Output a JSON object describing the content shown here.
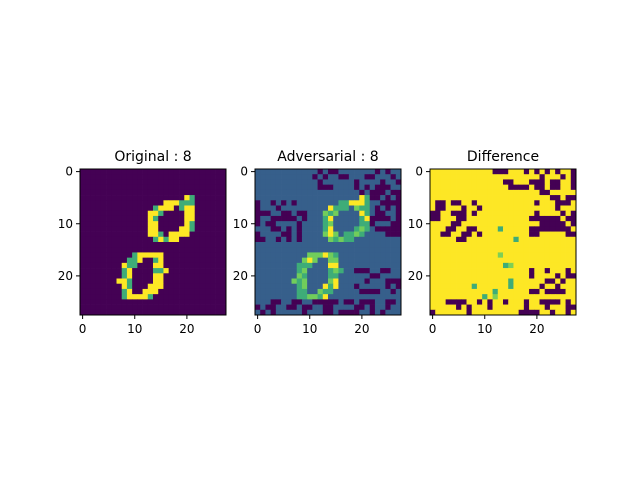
{
  "chart_data": [
    {
      "type": "heatmap",
      "title": "Original : 8",
      "grid_size": [
        28,
        28
      ],
      "xlim": [
        -0.5,
        27.5
      ],
      "ylim": [
        27.5,
        -0.5
      ],
      "xticks": [
        0,
        10,
        20
      ],
      "yticks": [
        0,
        10,
        20
      ],
      "colormap": "viridis",
      "background_value": 0.0,
      "stroke_value": 1.0,
      "description_values": {
        "background": "dark purple",
        "digit_stroke": "yellow/green",
        "digit": "8"
      }
    },
    {
      "type": "heatmap",
      "title": "Adversarial : 8",
      "grid_size": [
        28,
        28
      ],
      "xlim": [
        -0.5,
        27.5
      ],
      "ylim": [
        27.5,
        -0.5
      ],
      "xticks": [
        0,
        10,
        20
      ],
      "yticks": [
        0,
        10,
        20
      ],
      "colormap": "viridis",
      "background_value": 0.3,
      "stroke_value": 0.8,
      "noise_value": 0.0
    },
    {
      "type": "heatmap",
      "title": "Difference",
      "grid_size": [
        28,
        28
      ],
      "xlim": [
        -0.5,
        27.5
      ],
      "ylim": [
        27.5,
        -0.5
      ],
      "xticks": [
        0,
        10,
        20
      ],
      "yticks": [
        0,
        10,
        20
      ],
      "colormap": "viridis",
      "background_value": 1.0,
      "noise_value": 0.0
    }
  ],
  "colors": {
    "viridis_low": "#440154",
    "viridis_midlow": "#3b528b",
    "viridis_mid": "#21918c",
    "viridis_midhigh": "#5ec962",
    "viridis_high": "#fde725"
  }
}
